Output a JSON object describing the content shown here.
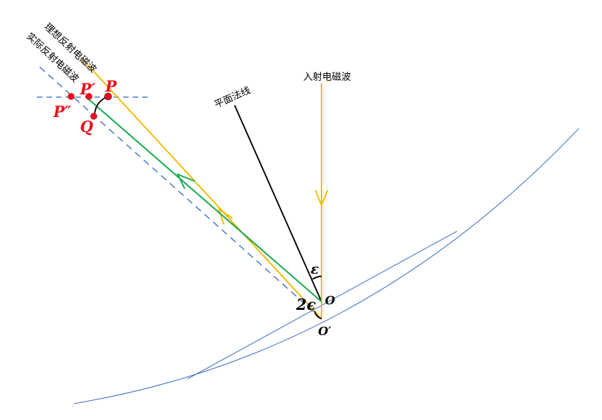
{
  "labels": {
    "ideal_reflected": "理想反射电磁波",
    "actual_reflected": "实际反射电磁波",
    "incident": "入射电磁波",
    "plane_normal": "平面法线",
    "point_P": "P",
    "point_P_prime": "P′",
    "point_P_double_prime": "P″",
    "point_Q": "Q",
    "point_O": "O",
    "point_O_prime": "O′",
    "angle_epsilon": "ε",
    "angle_two_epsilon": "2ϵ"
  },
  "colors": {
    "ideal_ray": "#f5b800",
    "actual_ray": "#12a84a",
    "normal": "#000000",
    "curve": "#4472c4",
    "dashed": "#4472c4",
    "points": "#e8101a"
  }
}
